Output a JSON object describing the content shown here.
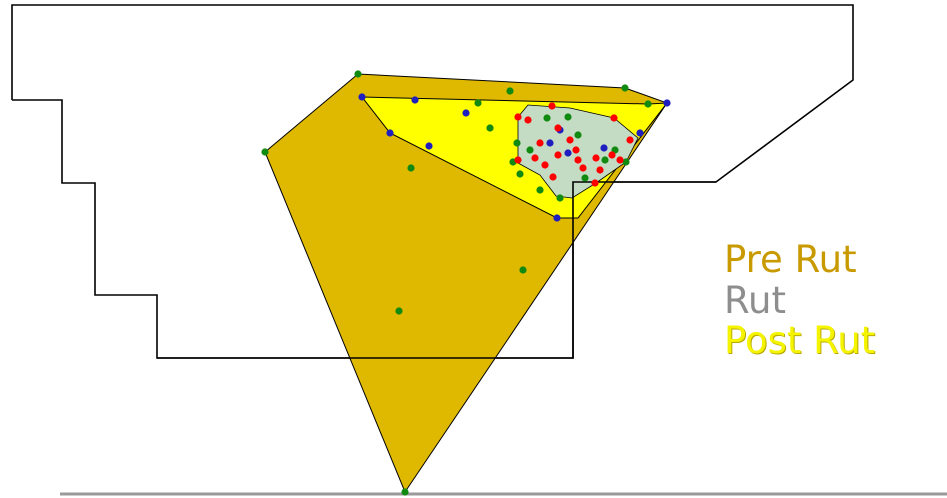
{
  "legend": {
    "items": [
      {
        "label": "Pre Rut",
        "color": "#c89a00"
      },
      {
        "label": "Rut",
        "color": "#8e8e8e"
      },
      {
        "label": "Post Rut",
        "color": "#f4f400"
      }
    ]
  },
  "colors": {
    "pre_rut_fill": "#dfb900",
    "post_rut_fill": "#ffff00",
    "rut_fill": "#c5dcc4",
    "outline": "#000000",
    "dot_red": "#ff0000",
    "dot_blue": "#1f1fc0",
    "dot_green": "#118a11"
  }
}
